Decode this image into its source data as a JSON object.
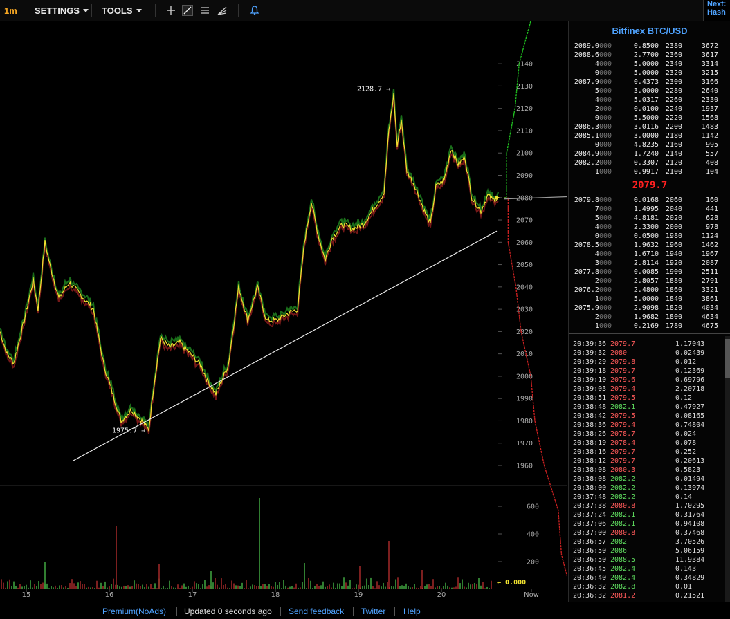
{
  "toolbar": {
    "interval": "1m",
    "settings_label": "SETTINGS",
    "tools_label": "TOOLS",
    "icons": [
      "plus-icon",
      "trendline-icon",
      "lines-icon",
      "fib-icon",
      "bell-icon"
    ]
  },
  "next_panel": {
    "line1": "Next:",
    "line2": "Hash"
  },
  "chart_data": {
    "type": "line",
    "price_axis": {
      "ticks": [
        1960,
        1970,
        1980,
        1990,
        2000,
        2010,
        2020,
        2030,
        2040,
        2050,
        2060,
        2070,
        2080,
        2090,
        2100,
        2110,
        2120,
        2130,
        2140
      ]
    },
    "volume_axis": {
      "ticks": [
        200,
        400,
        600
      ]
    },
    "x_ticks": [
      "15",
      "16",
      "17",
      "18",
      "19",
      "20",
      "Now"
    ],
    "annotations": {
      "high": "2128.7 →",
      "low": "1975.7 →",
      "volume_now": "← 0.000"
    },
    "price_series_keypoints": [
      {
        "x": 0,
        "y": 2020
      },
      {
        "x": 10,
        "y": 2010
      },
      {
        "x": 20,
        "y": 2006
      },
      {
        "x": 35,
        "y": 2025
      },
      {
        "x": 48,
        "y": 2043
      },
      {
        "x": 55,
        "y": 2030
      },
      {
        "x": 65,
        "y": 2060
      },
      {
        "x": 72,
        "y": 2050
      },
      {
        "x": 85,
        "y": 2035
      },
      {
        "x": 100,
        "y": 2042
      },
      {
        "x": 115,
        "y": 2037
      },
      {
        "x": 135,
        "y": 2030
      },
      {
        "x": 150,
        "y": 2005
      },
      {
        "x": 165,
        "y": 1990
      },
      {
        "x": 175,
        "y": 1980
      },
      {
        "x": 190,
        "y": 1985
      },
      {
        "x": 205,
        "y": 1980
      },
      {
        "x": 215,
        "y": 1976
      },
      {
        "x": 222,
        "y": 1995
      },
      {
        "x": 232,
        "y": 2017
      },
      {
        "x": 245,
        "y": 2013
      },
      {
        "x": 260,
        "y": 2015
      },
      {
        "x": 275,
        "y": 2010
      },
      {
        "x": 290,
        "y": 2005
      },
      {
        "x": 300,
        "y": 1998
      },
      {
        "x": 312,
        "y": 1992
      },
      {
        "x": 330,
        "y": 2005
      },
      {
        "x": 345,
        "y": 2040
      },
      {
        "x": 358,
        "y": 2025
      },
      {
        "x": 372,
        "y": 2040
      },
      {
        "x": 385,
        "y": 2025
      },
      {
        "x": 400,
        "y": 2025
      },
      {
        "x": 415,
        "y": 2028
      },
      {
        "x": 430,
        "y": 2030
      },
      {
        "x": 440,
        "y": 2060
      },
      {
        "x": 450,
        "y": 2078
      },
      {
        "x": 460,
        "y": 2063
      },
      {
        "x": 470,
        "y": 2052
      },
      {
        "x": 480,
        "y": 2062
      },
      {
        "x": 495,
        "y": 2068
      },
      {
        "x": 510,
        "y": 2066
      },
      {
        "x": 525,
        "y": 2068
      },
      {
        "x": 540,
        "y": 2075
      },
      {
        "x": 555,
        "y": 2082
      },
      {
        "x": 562,
        "y": 2110
      },
      {
        "x": 569,
        "y": 2126
      },
      {
        "x": 574,
        "y": 2103
      },
      {
        "x": 580,
        "y": 2115
      },
      {
        "x": 588,
        "y": 2092
      },
      {
        "x": 600,
        "y": 2085
      },
      {
        "x": 612,
        "y": 2075
      },
      {
        "x": 622,
        "y": 2068
      },
      {
        "x": 630,
        "y": 2085
      },
      {
        "x": 642,
        "y": 2088
      },
      {
        "x": 652,
        "y": 2102
      },
      {
        "x": 662,
        "y": 2095
      },
      {
        "x": 672,
        "y": 2098
      },
      {
        "x": 682,
        "y": 2080
      },
      {
        "x": 695,
        "y": 2074
      },
      {
        "x": 705,
        "y": 2081
      },
      {
        "x": 712,
        "y": 2079
      },
      {
        "x": 720,
        "y": 2080
      }
    ],
    "volume_spikes": [
      {
        "x": 168,
        "v": 460
      },
      {
        "x": 375,
        "v": 660
      },
      {
        "x": 562,
        "v": 350
      },
      {
        "x": 65,
        "v": 200
      },
      {
        "x": 230,
        "v": 180
      },
      {
        "x": 440,
        "v": 190
      },
      {
        "x": 520,
        "v": 170
      },
      {
        "x": 305,
        "v": 130
      },
      {
        "x": 610,
        "v": 140
      }
    ],
    "trendline": {
      "start": {
        "x": 105,
        "y": 1962
      },
      "end": {
        "x": 718,
        "y": 2065
      }
    },
    "depth_bids": [
      {
        "p": 2079.8,
        "c": 160
      },
      {
        "p": 2060,
        "c": 160
      },
      {
        "p": 2040,
        "c": 441
      },
      {
        "p": 2020,
        "c": 628
      },
      {
        "p": 2000,
        "c": 978
      },
      {
        "p": 1980,
        "c": 1124
      },
      {
        "p": 1960,
        "c": 1462
      },
      {
        "p": 1940,
        "c": 1967
      },
      {
        "p": 1920,
        "c": 2087
      },
      {
        "p": 1900,
        "c": 2511
      }
    ],
    "depth_asks": [
      {
        "p": 2080,
        "c": 104
      },
      {
        "p": 2100,
        "c": 104
      },
      {
        "p": 2120,
        "c": 408
      },
      {
        "p": 2140,
        "c": 557
      },
      {
        "p": 2160,
        "c": 995
      },
      {
        "p": 2180,
        "c": 1142
      },
      {
        "p": 2200,
        "c": 1483
      },
      {
        "p": 2220,
        "c": 1568
      },
      {
        "p": 2240,
        "c": 1937
      },
      {
        "p": 2260,
        "c": 2330
      }
    ]
  },
  "market_title": "Bitfinex BTC/USD",
  "asks": [
    {
      "price": "2089.0",
      "dim": "000",
      "amount": "0.8500",
      "sum1": "2380",
      "sum2": "3672"
    },
    {
      "price": "2088.6",
      "dim": "000",
      "amount": "2.7700",
      "sum1": "2360",
      "sum2": "3617"
    },
    {
      "price": "4",
      "dim": "000",
      "amount": "5.0000",
      "sum1": "2340",
      "sum2": "3314"
    },
    {
      "price": "0",
      "dim": "000",
      "amount": "5.0000",
      "sum1": "2320",
      "sum2": "3215"
    },
    {
      "price": "2087.9",
      "dim": "000",
      "amount": "0.4373",
      "sum1": "2300",
      "sum2": "3166"
    },
    {
      "price": "5",
      "dim": "000",
      "amount": "3.0000",
      "sum1": "2280",
      "sum2": "2640"
    },
    {
      "price": "4",
      "dim": "000",
      "amount": "5.0317",
      "sum1": "2260",
      "sum2": "2330"
    },
    {
      "price": "2",
      "dim": "000",
      "amount": "0.0100",
      "sum1": "2240",
      "sum2": "1937"
    },
    {
      "price": "0",
      "dim": "000",
      "amount": "5.5000",
      "sum1": "2220",
      "sum2": "1568"
    },
    {
      "price": "2086.3",
      "dim": "000",
      "amount": "3.0116",
      "sum1": "2200",
      "sum2": "1483"
    },
    {
      "price": "2085.1",
      "dim": "000",
      "amount": "3.0000",
      "sum1": "2180",
      "sum2": "1142"
    },
    {
      "price": "0",
      "dim": "000",
      "amount": "4.8235",
      "sum1": "2160",
      "sum2": "995"
    },
    {
      "price": "2084.9",
      "dim": "000",
      "amount": "1.7240",
      "sum1": "2140",
      "sum2": "557"
    },
    {
      "price": "2082.2",
      "dim": "000",
      "amount": "0.3307",
      "sum1": "2120",
      "sum2": "408"
    },
    {
      "price": "1",
      "dim": "000",
      "amount": "0.9917",
      "sum1": "2100",
      "sum2": "104"
    }
  ],
  "last_price": "2079.7",
  "bids": [
    {
      "price": "2079.8",
      "dim": "000",
      "amount": "0.0168",
      "sum1": "2060",
      "sum2": "160"
    },
    {
      "price": "7",
      "dim": "000",
      "amount": "1.4995",
      "sum1": "2040",
      "sum2": "441"
    },
    {
      "price": "5",
      "dim": "000",
      "amount": "4.8181",
      "sum1": "2020",
      "sum2": "628"
    },
    {
      "price": "4",
      "dim": "000",
      "amount": "2.3300",
      "sum1": "2000",
      "sum2": "978"
    },
    {
      "price": "0",
      "dim": "000",
      "amount": "0.0500",
      "sum1": "1980",
      "sum2": "1124"
    },
    {
      "price": "2078.5",
      "dim": "000",
      "amount": "1.9632",
      "sum1": "1960",
      "sum2": "1462"
    },
    {
      "price": "4",
      "dim": "000",
      "amount": "1.6710",
      "sum1": "1940",
      "sum2": "1967"
    },
    {
      "price": "3",
      "dim": "000",
      "amount": "2.8114",
      "sum1": "1920",
      "sum2": "2087"
    },
    {
      "price": "2077.8",
      "dim": "000",
      "amount": "0.0085",
      "sum1": "1900",
      "sum2": "2511"
    },
    {
      "price": "2",
      "dim": "000",
      "amount": "2.8057",
      "sum1": "1880",
      "sum2": "2791"
    },
    {
      "price": "2076.2",
      "dim": "000",
      "amount": "2.4800",
      "sum1": "1860",
      "sum2": "3321"
    },
    {
      "price": "1",
      "dim": "000",
      "amount": "5.0000",
      "sum1": "1840",
      "sum2": "3861"
    },
    {
      "price": "2075.9",
      "dim": "000",
      "amount": "2.9098",
      "sum1": "1820",
      "sum2": "4034"
    },
    {
      "price": "2",
      "dim": "000",
      "amount": "1.9682",
      "sum1": "1800",
      "sum2": "4634"
    },
    {
      "price": "1",
      "dim": "000",
      "amount": "0.2169",
      "sum1": "1780",
      "sum2": "4675"
    }
  ],
  "trades": [
    {
      "time": "20:39:36",
      "price": "2079.7",
      "dir": "down",
      "amount": "1.17043"
    },
    {
      "time": "20:39:32",
      "price": "2080",
      "dir": "down",
      "amount": "0.02439"
    },
    {
      "time": "20:39:29",
      "price": "2079.8",
      "dir": "down",
      "amount": "0.012"
    },
    {
      "time": "20:39:18",
      "price": "2079.7",
      "dir": "down",
      "amount": "0.12369"
    },
    {
      "time": "20:39:10",
      "price": "2079.6",
      "dir": "down",
      "amount": "0.69796"
    },
    {
      "time": "20:39:03",
      "price": "2079.4",
      "dir": "down",
      "amount": "2.20718"
    },
    {
      "time": "20:38:51",
      "price": "2079.5",
      "dir": "down",
      "amount": "0.12"
    },
    {
      "time": "20:38:48",
      "price": "2082.1",
      "dir": "up",
      "amount": "0.47927"
    },
    {
      "time": "20:38:42",
      "price": "2079.5",
      "dir": "down",
      "amount": "0.08165"
    },
    {
      "time": "20:38:36",
      "price": "2079.4",
      "dir": "down",
      "amount": "0.74804"
    },
    {
      "time": "20:38:26",
      "price": "2078.7",
      "dir": "down",
      "amount": "0.024"
    },
    {
      "time": "20:38:19",
      "price": "2078.4",
      "dir": "down",
      "amount": "0.078"
    },
    {
      "time": "20:38:16",
      "price": "2079.7",
      "dir": "down",
      "amount": "0.252"
    },
    {
      "time": "20:38:12",
      "price": "2079.7",
      "dir": "down",
      "amount": "0.20613"
    },
    {
      "time": "20:38:08",
      "price": "2080.3",
      "dir": "down",
      "amount": "0.5823"
    },
    {
      "time": "20:38:08",
      "price": "2082.2",
      "dir": "up",
      "amount": "0.01494"
    },
    {
      "time": "20:38:00",
      "price": "2082.2",
      "dir": "up",
      "amount": "0.13974"
    },
    {
      "time": "20:37:48",
      "price": "2082.2",
      "dir": "up",
      "amount": "0.14"
    },
    {
      "time": "20:37:38",
      "price": "2080.8",
      "dir": "down",
      "amount": "1.70295"
    },
    {
      "time": "20:37:24",
      "price": "2082.1",
      "dir": "up",
      "amount": "0.31764"
    },
    {
      "time": "20:37:06",
      "price": "2082.1",
      "dir": "up",
      "amount": "0.94108"
    },
    {
      "time": "20:37:00",
      "price": "2080.8",
      "dir": "down",
      "amount": "0.37468"
    },
    {
      "time": "20:36:57",
      "price": "2082",
      "dir": "up",
      "amount": "3.70526"
    },
    {
      "time": "20:36:50",
      "price": "2086",
      "dir": "up",
      "amount": "5.06159"
    },
    {
      "time": "20:36:50",
      "price": "2088.5",
      "dir": "up",
      "amount": "11.9384"
    },
    {
      "time": "20:36:45",
      "price": "2082.4",
      "dir": "up",
      "amount": "0.143"
    },
    {
      "time": "20:36:40",
      "price": "2082.4",
      "dir": "up",
      "amount": "0.34829"
    },
    {
      "time": "20:36:32",
      "price": "2082.8",
      "dir": "up",
      "amount": "0.01"
    },
    {
      "time": "20:36:32",
      "price": "2081.2",
      "dir": "down",
      "amount": "0.21521"
    }
  ],
  "footer": {
    "premium": "Premium(NoAds)",
    "updated": "Updated 0 seconds ago",
    "feedback": "Send feedback",
    "twitter": "Twitter",
    "help": "Help"
  }
}
